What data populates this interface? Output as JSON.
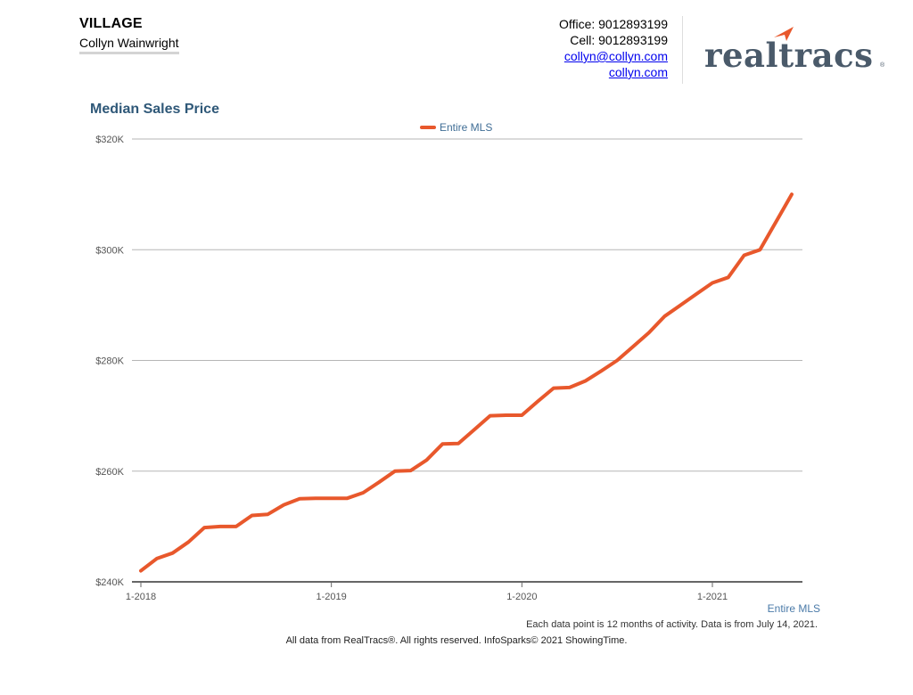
{
  "header": {
    "title": "VILLAGE",
    "agent": "Collyn Wainwright",
    "office": "Office: 9012893199",
    "cell": "Cell: 9012893199",
    "email": "collyn@collyn.com",
    "website": "collyn.com",
    "logo_text": "realtracs",
    "logo_mark": "®",
    "logo_color": "#4a5a6a",
    "logo_accent": "#e8582c"
  },
  "chart_data": {
    "type": "line",
    "title": "Median Sales Price",
    "xlabel": "",
    "ylabel": "",
    "x_ticks": [
      "1-2018",
      "1-2019",
      "1-2020",
      "1-2021"
    ],
    "y_ticks": [
      "$240K",
      "$260K",
      "$280K",
      "$300K",
      "$320K"
    ],
    "ylim": [
      240000,
      320000
    ],
    "grid": true,
    "legend_position": "top-center",
    "series": [
      {
        "name": "Entire MLS",
        "color": "#e8582c",
        "x": [
          "2018-01",
          "2018-02",
          "2018-03",
          "2018-04",
          "2018-05",
          "2018-06",
          "2018-07",
          "2018-08",
          "2018-09",
          "2018-10",
          "2018-11",
          "2018-12",
          "2019-01",
          "2019-02",
          "2019-03",
          "2019-04",
          "2019-05",
          "2019-06",
          "2019-07",
          "2019-08",
          "2019-09",
          "2019-10",
          "2019-11",
          "2019-12",
          "2020-01",
          "2020-02",
          "2020-03",
          "2020-04",
          "2020-05",
          "2020-06",
          "2020-07",
          "2020-08",
          "2020-09",
          "2020-10",
          "2020-11",
          "2020-12",
          "2021-01",
          "2021-02",
          "2021-03",
          "2021-04",
          "2021-05",
          "2021-06"
        ],
        "values": [
          242000,
          244200,
          245200,
          247200,
          249800,
          250000,
          250000,
          252000,
          252200,
          253900,
          255000,
          255100,
          255100,
          255100,
          256100,
          258000,
          260000,
          260100,
          262000,
          264900,
          265000,
          267500,
          270000,
          270100,
          270100,
          272600,
          275000,
          275100,
          276300,
          278100,
          280000,
          282500,
          285000,
          288000,
          290000,
          292000,
          294000,
          295000,
          299000,
          300000,
          305000,
          310000
        ]
      }
    ]
  },
  "footer": {
    "series_label": "Entire MLS",
    "note": "Each data point is 12 months of activity. Data is from July 14, 2021.",
    "copyright": "All data from RealTracs®. All rights reserved. InfoSparks© 2021 ShowingTime."
  }
}
